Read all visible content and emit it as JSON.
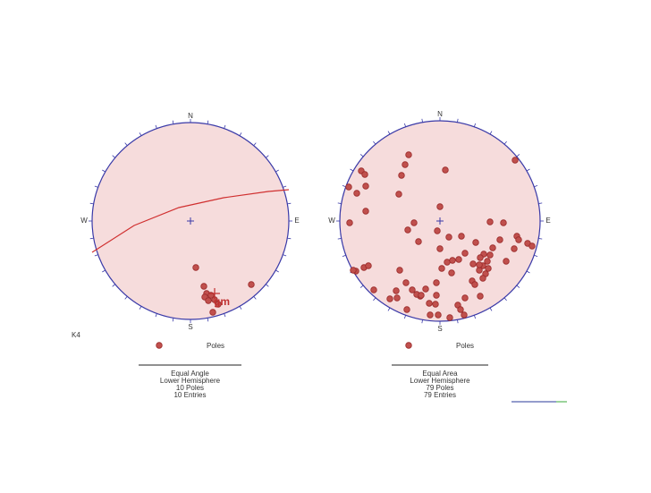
{
  "label": "K4",
  "chart_data": [
    {
      "type": "stereonet",
      "projection": "Equal Angle",
      "hemisphere": "Lower Hemisphere",
      "compass": [
        "N",
        "E",
        "S",
        "W"
      ],
      "xlim": [
        -110,
        110
      ],
      "ylim": [
        -110,
        110
      ],
      "series": [
        {
          "name": "Poles",
          "color": "#c0504d",
          "x": [
            6,
            15,
            18,
            16,
            23,
            27,
            20,
            31,
            25,
            68
          ],
          "y": [
            -52,
            -73,
            -81,
            -85,
            -83,
            -88,
            -89,
            -93,
            -102,
            -71
          ]
        }
      ],
      "great_circle": {
        "color": "#d03030",
        "x": [
          -110,
          -63,
          -13,
          37,
          87,
          110
        ],
        "y": [
          -35,
          -5,
          15,
          26,
          33,
          35
        ]
      },
      "annotation": "gm",
      "summary": [
        "10 Poles",
        "10 Entries"
      ]
    },
    {
      "type": "stereonet",
      "projection": "Equal Area",
      "hemisphere": "Lower Hemisphere",
      "compass": [
        "N",
        "E",
        "S",
        "W"
      ],
      "xlim": [
        -112,
        112
      ],
      "ylim": [
        -112,
        112
      ],
      "series": [
        {
          "name": "Poles",
          "color": "#c0504d",
          "x": [
            84,
            -35,
            -39,
            -43,
            6,
            -88,
            -84,
            -102,
            -83,
            -93,
            -46,
            0,
            -29,
            -101,
            -83,
            -36,
            -24,
            -3,
            10,
            24,
            56,
            71,
            86,
            40,
            28,
            67,
            59,
            88,
            98,
            103,
            49,
            45,
            56,
            53,
            48,
            44,
            54,
            51,
            44,
            74,
            37,
            21,
            8,
            2,
            13,
            36,
            45,
            28,
            39,
            -4,
            -16,
            -22,
            -26,
            -4,
            -12,
            -11,
            -2,
            20,
            23,
            27,
            11,
            -49,
            -48,
            -56,
            -74,
            -94,
            -97,
            -85,
            -80,
            0,
            -45,
            -31,
            -21,
            14,
            48,
            83,
            -38,
            -5,
            -37
          ],
          "y": [
            68,
            74,
            63,
            51,
            57,
            56,
            52,
            38,
            39,
            31,
            30,
            16,
            -2,
            -2,
            11,
            -10,
            -23,
            -11,
            -18,
            -17,
            -1,
            -2,
            -17,
            -24,
            -36,
            -21,
            -30,
            -21,
            -25,
            -28,
            -37,
            -41,
            -38,
            -45,
            -50,
            -55,
            -53,
            -59,
            -49,
            -45,
            -48,
            -43,
            -46,
            -53,
            -58,
            -67,
            -84,
            -86,
            -71,
            -69,
            -76,
            -84,
            -82,
            -83,
            -92,
            -105,
            -105,
            -94,
            -99,
            -105,
            -108,
            -78,
            -86,
            -87,
            -77,
            -56,
            -55,
            -52,
            -50,
            -31,
            -55,
            -77,
            -83,
            -44,
            -64,
            -31,
            -69,
            -93,
            -99
          ]
        }
      ],
      "summary": [
        "79 Poles",
        "79 Entries"
      ]
    }
  ]
}
